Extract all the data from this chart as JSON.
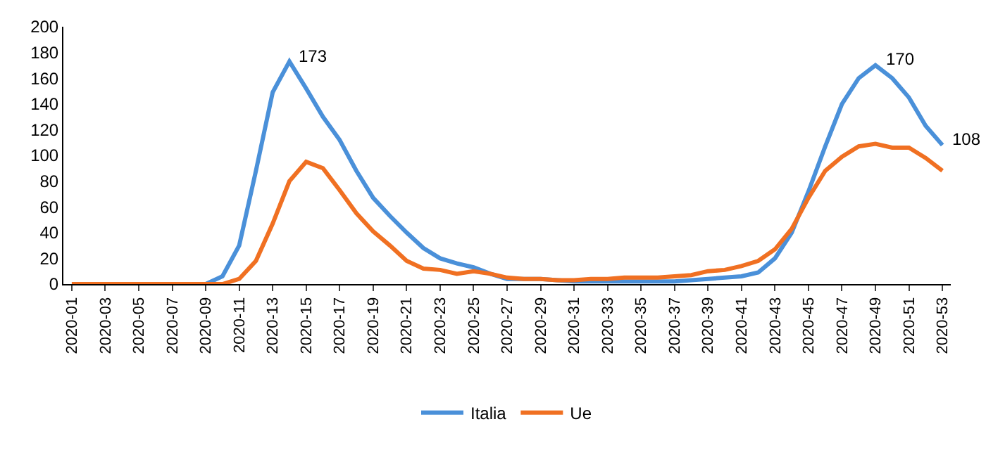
{
  "chart_data": {
    "type": "line",
    "categories": [
      "2020-01",
      null,
      "2020-03",
      null,
      "2020-05",
      null,
      "2020-07",
      null,
      "2020-09",
      null,
      "2020-11",
      null,
      "2020-13",
      null,
      "2020-15",
      null,
      "2020-17",
      null,
      "2020-19",
      null,
      "2020-21",
      null,
      "2020-23",
      null,
      "2020-25",
      null,
      "2020-27",
      null,
      "2020-29",
      null,
      "2020-31",
      null,
      "2020-33",
      null,
      "2020-35",
      null,
      "2020-37",
      null,
      "2020-39",
      null,
      "2020-41",
      null,
      "2020-43",
      null,
      "2020-45",
      null,
      "2020-47",
      null,
      "2020-49",
      null,
      "2020-51",
      null,
      "2020-53"
    ],
    "series": [
      {
        "name": "Italia",
        "color": "#4a90d9",
        "values": [
          null,
          null,
          null,
          null,
          null,
          null,
          null,
          0,
          0,
          6,
          30,
          88,
          149,
          173,
          152,
          130,
          112,
          88,
          67,
          53,
          40,
          28,
          20,
          16,
          13,
          8,
          4,
          4,
          4,
          3,
          2,
          2,
          2,
          2,
          2,
          2,
          2,
          3,
          4,
          5,
          6,
          9,
          20,
          40,
          72,
          107,
          140,
          160,
          170,
          160,
          145,
          123,
          108
        ],
        "value_labels": [
          null,
          null,
          null,
          null,
          null,
          null,
          null,
          null,
          null,
          null,
          null,
          null,
          null,
          "173",
          null,
          null,
          null,
          null,
          null,
          null,
          null,
          null,
          null,
          null,
          null,
          null,
          null,
          null,
          null,
          null,
          null,
          null,
          null,
          null,
          null,
          null,
          null,
          null,
          null,
          null,
          null,
          null,
          null,
          null,
          null,
          null,
          null,
          null,
          "170",
          null,
          null,
          null,
          "108"
        ]
      },
      {
        "name": "Ue",
        "color": "#f07022",
        "values": [
          0,
          0,
          0,
          0,
          0,
          0,
          0,
          0,
          0,
          0,
          4,
          18,
          47,
          80,
          95,
          90,
          73,
          55,
          41,
          30,
          18,
          12,
          11,
          8,
          10,
          8,
          5,
          4,
          4,
          3,
          3,
          4,
          4,
          5,
          5,
          5,
          6,
          7,
          10,
          11,
          14,
          18,
          27,
          43,
          67,
          88,
          99,
          107,
          109,
          106,
          106,
          98,
          88
        ]
      }
    ],
    "ylim": [
      0,
      200
    ],
    "yticks": [
      0,
      20,
      40,
      60,
      80,
      100,
      120,
      140,
      160,
      180,
      200
    ],
    "legend": "bottom",
    "marker": "none",
    "line_style": "solid"
  }
}
